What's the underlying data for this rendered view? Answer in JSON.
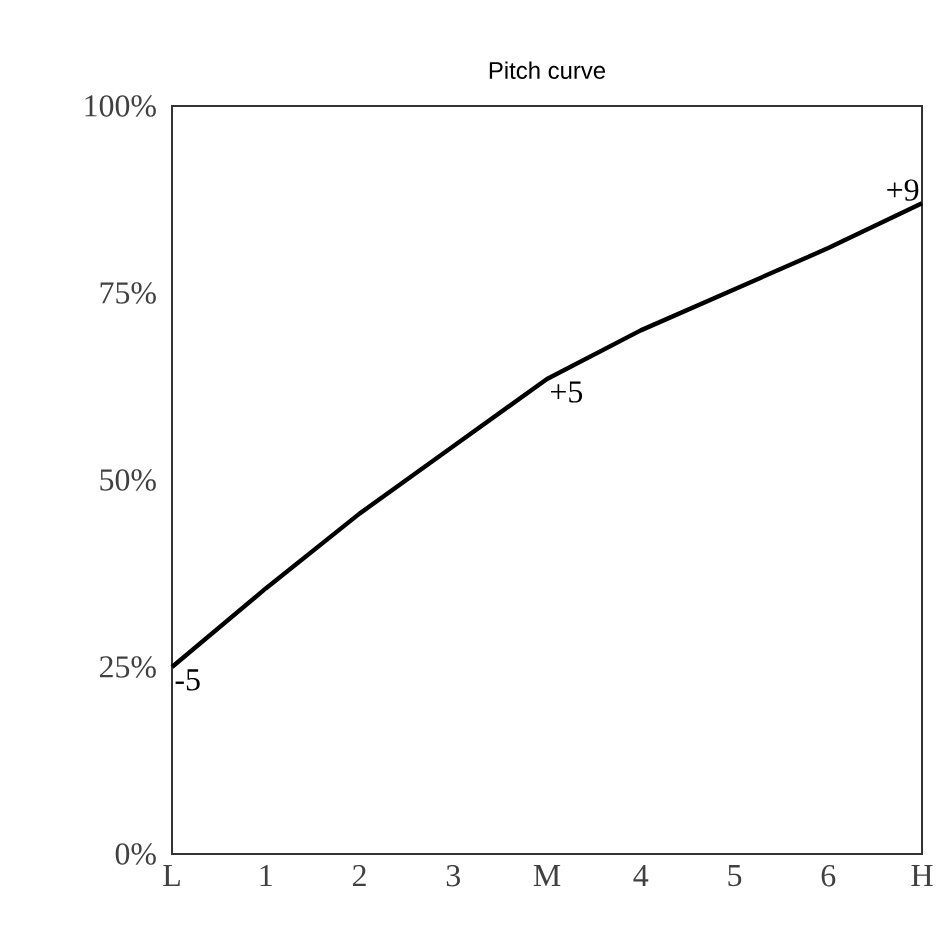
{
  "chart_data": {
    "type": "line",
    "title": "Pitch curve",
    "categories": [
      "L",
      "1",
      "2",
      "3",
      "M",
      "4",
      "5",
      "6",
      "H"
    ],
    "series": [
      {
        "color": "#000000",
        "values": [
          25,
          35.5,
          45.5,
          54.5,
          63.5,
          70,
          75.5,
          81,
          87
        ]
      }
    ],
    "ylim": [
      0,
      100
    ],
    "yticks": [
      {
        "value": 0,
        "label": "0%"
      },
      {
        "value": 25,
        "label": "25%"
      },
      {
        "value": 50,
        "label": "50%"
      },
      {
        "value": 75,
        "label": "75%"
      },
      {
        "value": 100,
        "label": "100%"
      }
    ],
    "annotations": [
      {
        "text": "-5",
        "x": "L",
        "y": 25
      },
      {
        "text": "+5",
        "x": "M",
        "y": 63.5
      },
      {
        "text": "+9",
        "x": "H",
        "y": 87
      }
    ],
    "grid": false,
    "marker": "none",
    "line_style": "solid"
  }
}
